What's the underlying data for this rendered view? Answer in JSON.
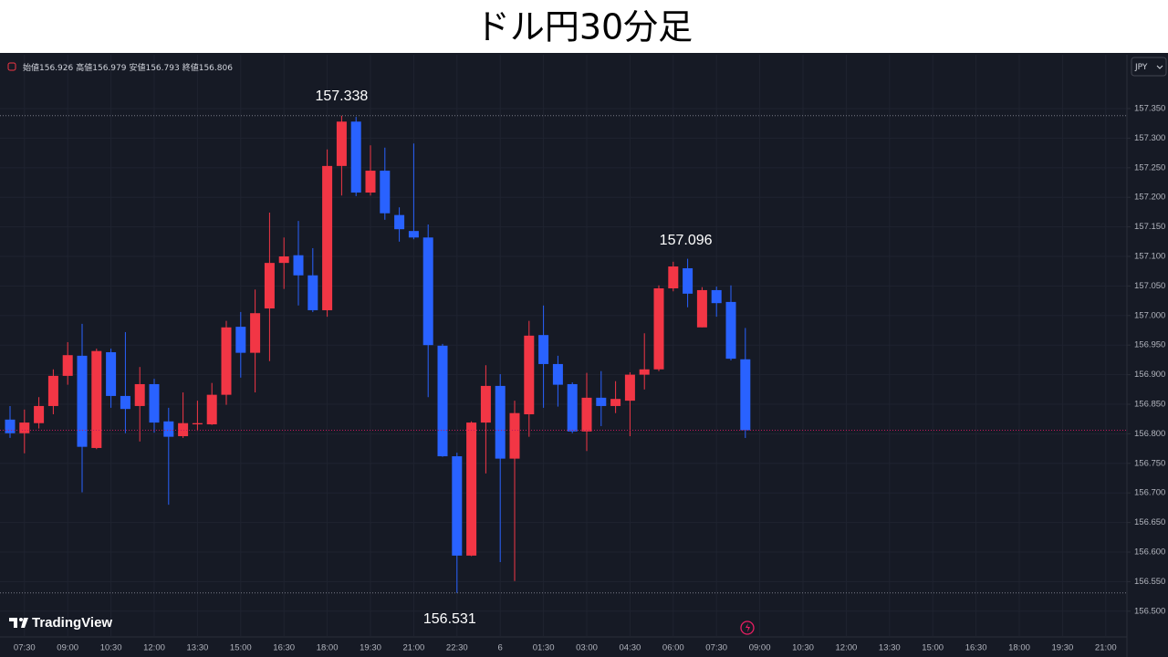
{
  "chart_data": {
    "type": "candlestick",
    "title": "ドル円30分足",
    "currency": "JPY",
    "brand": "TradingView",
    "ohlc_labels": {
      "open": "始値",
      "high": "高値",
      "low": "安値",
      "close": "終値"
    },
    "up_color": "#f23645",
    "down_color": "#2962ff",
    "grid": true,
    "categories": [
      null,
      "07:30",
      null,
      null,
      "09:00",
      null,
      null,
      "10:30",
      null,
      null,
      "12:00",
      null,
      null,
      "13:30",
      null,
      null,
      "15:00",
      null,
      null,
      "16:30",
      null,
      null,
      "18:00",
      null,
      null,
      "19:30",
      null,
      null,
      "21:00",
      null,
      null,
      "22:30",
      null,
      null,
      "6",
      null,
      null,
      "01:30",
      null,
      null,
      "03:00",
      null,
      null,
      "04:30",
      null,
      null,
      "06:00",
      null,
      null,
      "07:30",
      null,
      null,
      "09:00",
      null,
      null,
      "10:30",
      null,
      null,
      "12:00",
      null,
      null,
      "13:30",
      null,
      null,
      "15:00",
      null,
      null,
      "16:30",
      null,
      null,
      "18:00",
      null,
      null,
      "19:30",
      null,
      null,
      "21:00"
    ],
    "open": [
      156.824,
      156.801,
      156.818,
      156.847,
      156.898,
      156.932,
      156.776,
      156.938,
      156.864,
      156.847,
      156.884,
      156.821,
      156.796,
      156.816,
      156.816,
      156.866,
      156.981,
      156.937,
      157.012,
      157.089,
      157.102,
      157.068,
      157.009,
      157.253,
      157.328,
      157.208,
      157.245,
      157.17,
      157.143,
      157.132,
      156.949,
      156.762,
      156.594,
      156.819,
      156.881,
      156.758,
      156.833,
      156.967,
      156.918,
      156.884,
      156.804,
      156.861,
      156.847,
      156.856,
      156.9,
      156.909,
      157.046,
      157.08,
      156.98,
      157.043,
      157.023,
      156.926,
      null,
      null,
      null,
      null,
      null,
      null,
      null,
      null,
      null,
      null,
      null,
      null,
      null,
      null,
      null,
      null,
      null,
      null,
      null,
      null,
      null,
      null,
      null,
      null,
      null
    ],
    "high": [
      156.847,
      156.841,
      156.862,
      156.909,
      156.955,
      156.986,
      156.944,
      156.944,
      156.972,
      156.913,
      156.893,
      156.844,
      156.87,
      156.856,
      156.886,
      156.991,
      157.006,
      157.044,
      157.174,
      157.132,
      157.16,
      157.114,
      157.281,
      157.338,
      157.336,
      157.288,
      157.284,
      157.183,
      157.291,
      157.154,
      156.952,
      156.768,
      156.821,
      156.916,
      156.901,
      156.856,
      156.991,
      157.017,
      156.932,
      156.887,
      156.903,
      156.906,
      156.889,
      156.904,
      156.97,
      157.051,
      157.091,
      157.096,
      157.048,
      157.049,
      157.051,
      156.979,
      null,
      null,
      null,
      null,
      null,
      null,
      null,
      null,
      null,
      null,
      null,
      null,
      null,
      null,
      null,
      null,
      null,
      null,
      null,
      null,
      null,
      null,
      null,
      null,
      null
    ],
    "low": [
      156.793,
      156.767,
      156.809,
      156.833,
      156.883,
      156.701,
      156.774,
      156.844,
      156.801,
      156.787,
      156.802,
      156.68,
      156.793,
      156.805,
      156.815,
      156.849,
      156.895,
      156.87,
      156.923,
      157.045,
      157.017,
      157.006,
      156.998,
      157.203,
      157.202,
      157.203,
      157.162,
      157.125,
      157.129,
      156.862,
      156.761,
      156.531,
      156.593,
      156.733,
      156.583,
      156.551,
      156.795,
      156.844,
      156.846,
      156.801,
      156.771,
      156.813,
      156.835,
      156.796,
      156.875,
      156.906,
      157.041,
      157.014,
      156.98,
      156.998,
      156.924,
      156.793,
      null,
      null,
      null,
      null,
      null,
      null,
      null,
      null,
      null,
      null,
      null,
      null,
      null,
      null,
      null,
      null,
      null,
      null,
      null,
      null,
      null,
      null,
      null,
      null,
      null
    ],
    "close": [
      156.801,
      156.819,
      156.847,
      156.898,
      156.933,
      156.778,
      156.94,
      156.864,
      156.842,
      156.884,
      156.819,
      156.795,
      156.818,
      156.818,
      156.866,
      156.98,
      156.937,
      157.004,
      157.089,
      157.1,
      157.068,
      157.009,
      157.253,
      157.328,
      157.208,
      157.245,
      157.173,
      157.146,
      157.132,
      156.95,
      156.762,
      156.594,
      156.819,
      156.881,
      156.758,
      156.835,
      156.966,
      156.918,
      156.883,
      156.804,
      156.861,
      156.847,
      156.859,
      156.9,
      156.909,
      157.046,
      157.083,
      157.037,
      157.043,
      157.021,
      156.927,
      156.806,
      null,
      null,
      null,
      null,
      null,
      null,
      null,
      null,
      null,
      null,
      null,
      null,
      null,
      null,
      null,
      null,
      null,
      null,
      null,
      null,
      null,
      null,
      null,
      null,
      null
    ],
    "ylim": [
      156.458,
      157.438
    ],
    "yticks": [
      {
        "value": 156.5,
        "label": "156.500"
      },
      {
        "value": 156.55,
        "label": "156.550"
      },
      {
        "value": 156.6,
        "label": "156.600"
      },
      {
        "value": 156.65,
        "label": "156.650"
      },
      {
        "value": 156.7,
        "label": "156.700"
      },
      {
        "value": 156.75,
        "label": "156.750"
      },
      {
        "value": 156.8,
        "label": "156.800"
      },
      {
        "value": 156.85,
        "label": "156.850"
      },
      {
        "value": 156.9,
        "label": "156.900"
      },
      {
        "value": 156.95,
        "label": "156.950"
      },
      {
        "value": 157.0,
        "label": "157.000"
      },
      {
        "value": 157.05,
        "label": "157.050"
      },
      {
        "value": 157.1,
        "label": "157.100"
      },
      {
        "value": 157.15,
        "label": "157.150"
      },
      {
        "value": 157.2,
        "label": "157.200"
      },
      {
        "value": 157.25,
        "label": "157.250"
      },
      {
        "value": 157.3,
        "label": "157.300"
      },
      {
        "value": 157.35,
        "label": "157.350"
      }
    ]
  }
}
